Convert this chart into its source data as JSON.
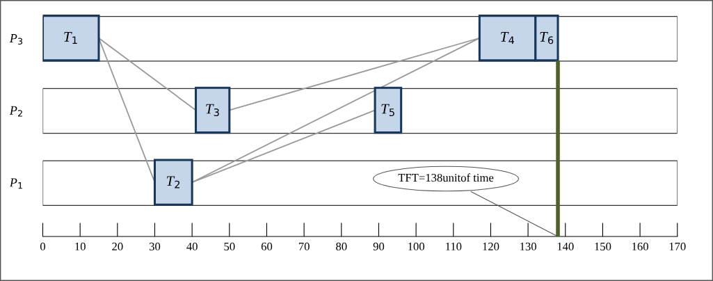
{
  "chart_data": {
    "type": "bar",
    "orientation": "horizontal",
    "categories": [
      "P$_{3}$",
      "P$_{2}$",
      "P$_{1}$"
    ],
    "series": [
      {
        "name": "T$_{1}$",
        "color": "#c5d5ea",
        "values": [
          15,
          null,
          null
        ],
        "base": [
          0,
          null,
          null
        ]
      },
      {
        "name": "T$_{2}$",
        "color": "#c5d5ea",
        "values": [
          null,
          null,
          10
        ],
        "base": [
          null,
          null,
          30
        ]
      },
      {
        "name": "T$_{3}$",
        "color": "#c5d5ea",
        "values": [
          null,
          9,
          null
        ],
        "base": [
          null,
          41,
          null
        ]
      },
      {
        "name": "T$_{4}$",
        "color": "#c5d5ea",
        "values": [
          15,
          null,
          null
        ],
        "base": [
          117,
          null,
          null
        ]
      },
      {
        "name": "T$_{5}$",
        "color": "#c5d5ea",
        "values": [
          null,
          7,
          null
        ],
        "base": [
          null,
          89,
          null
        ]
      },
      {
        "name": "T$_{6}$",
        "color": "#c5d5ea",
        "values": [
          6,
          null,
          null
        ],
        "base": [
          132,
          null,
          null
        ]
      }
    ],
    "xlim": [
      0,
      170
    ],
    "xticks": [
      0,
      10,
      20,
      30,
      40,
      50,
      60,
      70,
      80,
      90,
      100,
      110,
      120,
      130,
      140,
      150,
      160,
      170
    ],
    "ref_lines": [
      {
        "axis": "x",
        "value": 138,
        "label": "TFT=138unitof time",
        "color": "#4f6228"
      }
    ],
    "grid": false,
    "legend": false
  }
}
